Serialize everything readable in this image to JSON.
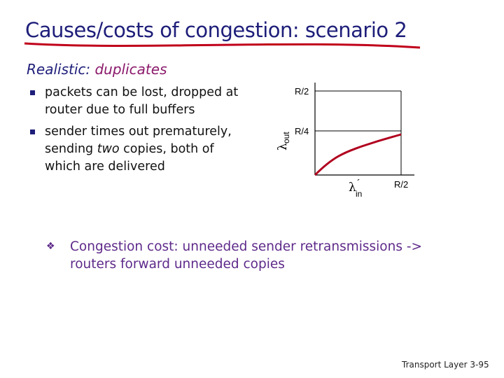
{
  "title": "Causes/costs of congestion: scenario 2",
  "subtitle": {
    "lead": "Realistic:",
    "highlight": "duplicates"
  },
  "bullets": [
    {
      "parts": [
        "packets can be lost, dropped at router due  to full buffers"
      ]
    },
    {
      "parts": [
        "sender times out prematurely, sending ",
        "two",
        " copies, both of which are delivered"
      ]
    }
  ],
  "diagram": {
    "y_tick_top": "R/2",
    "y_tick_mid": "R/4",
    "x_tick": "R/2",
    "y_label": {
      "symbol": "λ",
      "sub": "out"
    },
    "x_label": {
      "symbol": "λ",
      "sub": "in",
      "prime": "´"
    }
  },
  "note": "Congestion cost: unneeded sender retransmissions -> routers forward unneeded copies",
  "footer": {
    "section": "Transport Layer",
    "page": "3-95"
  }
}
